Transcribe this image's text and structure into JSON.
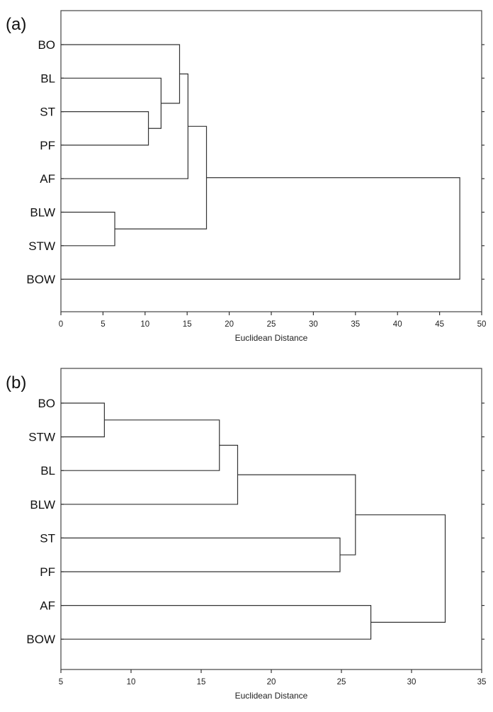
{
  "chart_data": [
    {
      "type": "dendrogram",
      "panel_label": "(a)",
      "xlabel": "Euclidean Distance",
      "xlim": [
        0,
        50
      ],
      "xticks": [
        0,
        5,
        10,
        15,
        20,
        25,
        30,
        35,
        40,
        45,
        50
      ],
      "leaves": [
        "BO",
        "BL",
        "ST",
        "PF",
        "AF",
        "BLW",
        "STW",
        "BOW"
      ],
      "merges": [
        {
          "left": "ST",
          "right": "PF",
          "distance": 10.4
        },
        {
          "left": "BL",
          "right": "#0",
          "distance": 11.9
        },
        {
          "left": "BO",
          "right": "#1",
          "distance": 14.1
        },
        {
          "left": "#2",
          "right": "AF",
          "distance": 15.1
        },
        {
          "left": "BLW",
          "right": "STW",
          "distance": 6.4
        },
        {
          "left": "#3",
          "right": "#4",
          "distance": 17.3
        },
        {
          "left": "#5",
          "right": "BOW",
          "distance": 47.4
        }
      ]
    },
    {
      "type": "dendrogram",
      "panel_label": "(b)",
      "xlabel": "Euclidean Distance",
      "xlim": [
        5,
        35
      ],
      "xticks": [
        5,
        10,
        15,
        20,
        25,
        30,
        35
      ],
      "leaves": [
        "BO",
        "STW",
        "BL",
        "BLW",
        "ST",
        "PF",
        "AF",
        "BOW"
      ],
      "merges": [
        {
          "left": "BO",
          "right": "STW",
          "distance": 8.1
        },
        {
          "left": "#0",
          "right": "BL",
          "distance": 16.3
        },
        {
          "left": "#1",
          "right": "BLW",
          "distance": 17.6
        },
        {
          "left": "ST",
          "right": "PF",
          "distance": 24.9
        },
        {
          "left": "#2",
          "right": "#3",
          "distance": 26.0
        },
        {
          "left": "AF",
          "right": "BOW",
          "distance": 27.1
        },
        {
          "left": "#4",
          "right": "#5",
          "distance": 32.4
        }
      ]
    }
  ]
}
